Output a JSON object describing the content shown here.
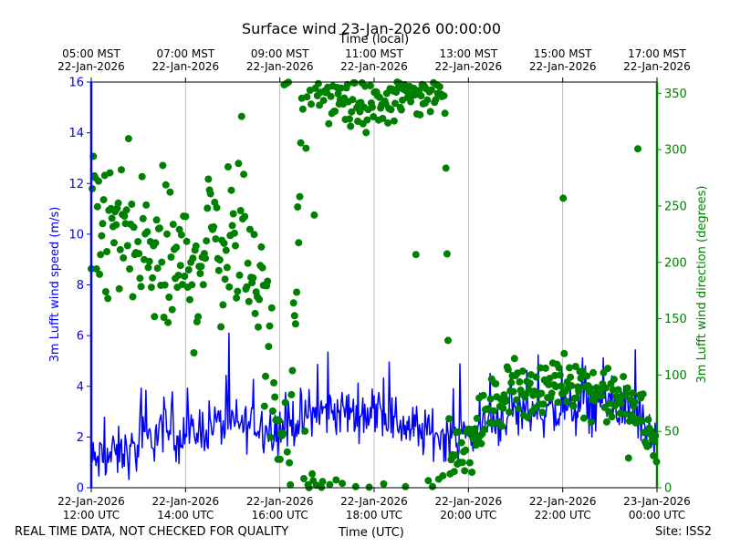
{
  "chart_data": {
    "type": "line+scatter",
    "title": "Surface wind 23-Jan-2026 00:00:00",
    "top_axis_label": "Time (local)",
    "top_ticks": [
      {
        "hour": 12,
        "time": "05:00 MST",
        "date": "22-Jan-2026"
      },
      {
        "hour": 14,
        "time": "07:00 MST",
        "date": "22-Jan-2026"
      },
      {
        "hour": 16,
        "time": "09:00 MST",
        "date": "22-Jan-2026"
      },
      {
        "hour": 18,
        "time": "11:00 MST",
        "date": "22-Jan-2026"
      },
      {
        "hour": 20,
        "time": "13:00 MST",
        "date": "22-Jan-2026"
      },
      {
        "hour": 22,
        "time": "15:00 MST",
        "date": "22-Jan-2026"
      },
      {
        "hour": 24,
        "time": "17:00 MST",
        "date": "22-Jan-2026"
      }
    ],
    "bottom_axis_label": "Time (UTC)",
    "bottom_ticks": [
      {
        "hour": 12,
        "date": "22-Jan-2026",
        "time": "12:00 UTC"
      },
      {
        "hour": 14,
        "date": "22-Jan-2026",
        "time": "14:00 UTC"
      },
      {
        "hour": 16,
        "date": "22-Jan-2026",
        "time": "16:00 UTC"
      },
      {
        "hour": 18,
        "date": "22-Jan-2026",
        "time": "18:00 UTC"
      },
      {
        "hour": 20,
        "date": "22-Jan-2026",
        "time": "20:00 UTC"
      },
      {
        "hour": 22,
        "date": "22-Jan-2026",
        "time": "22:00 UTC"
      },
      {
        "hour": 24,
        "date": "23-Jan-2026",
        "time": "00:00 UTC"
      }
    ],
    "xlim": [
      12,
      24
    ],
    "left_axis": {
      "label": "3m Lufft wind speed (m/s)",
      "ylim": [
        0,
        16
      ],
      "ticks": [
        0,
        2,
        4,
        6,
        8,
        10,
        12,
        14,
        16
      ],
      "color": "#0000ff"
    },
    "right_axis": {
      "label": "3m Lufft wind direction (degrees)",
      "ylim": [
        0,
        360
      ],
      "ticks": [
        0,
        50,
        100,
        150,
        200,
        250,
        300,
        350
      ],
      "color": "#008000"
    },
    "grid": "vertical",
    "series": [
      {
        "name": "3m Lufft wind speed",
        "axis": "left",
        "style": "line",
        "color": "#0000ff",
        "anchors": [
          [
            12.0,
            1.0
          ],
          [
            12.5,
            1.3
          ],
          [
            13.0,
            1.5
          ],
          [
            13.5,
            2.3
          ],
          [
            14.0,
            2.0
          ],
          [
            14.5,
            2.5
          ],
          [
            15.0,
            2.5
          ],
          [
            15.5,
            2.5
          ],
          [
            16.0,
            2.3
          ],
          [
            16.5,
            2.8
          ],
          [
            17.0,
            3.0
          ],
          [
            17.5,
            3.0
          ],
          [
            18.0,
            3.0
          ],
          [
            18.5,
            2.6
          ],
          [
            19.0,
            2.2
          ],
          [
            19.5,
            2.1
          ],
          [
            20.0,
            2.0
          ],
          [
            20.5,
            2.6
          ],
          [
            21.0,
            3.0
          ],
          [
            21.5,
            3.0
          ],
          [
            22.0,
            3.0
          ],
          [
            22.5,
            3.2
          ],
          [
            23.0,
            3.3
          ],
          [
            23.5,
            3.0
          ],
          [
            23.8,
            2.3
          ],
          [
            24.0,
            1.5
          ]
        ]
      },
      {
        "name": "3m Lufft wind direction",
        "axis": "right",
        "style": "markers",
        "color": "#008000",
        "anchors": [
          [
            12.0,
            220
          ],
          [
            12.5,
            230
          ],
          [
            13.0,
            210
          ],
          [
            13.5,
            200
          ],
          [
            14.0,
            190
          ],
          [
            14.5,
            220
          ],
          [
            15.0,
            220
          ],
          [
            15.5,
            200
          ],
          [
            15.8,
            100
          ],
          [
            16.0,
            60
          ],
          [
            16.2,
            10
          ],
          [
            16.5,
            355
          ],
          [
            17.0,
            350
          ],
          [
            17.5,
            340
          ],
          [
            18.0,
            340
          ],
          [
            18.5,
            345
          ],
          [
            19.0,
            350
          ],
          [
            19.5,
            355
          ],
          [
            19.6,
            30
          ],
          [
            20.0,
            40
          ],
          [
            20.5,
            70
          ],
          [
            21.0,
            95
          ],
          [
            21.5,
            80
          ],
          [
            22.0,
            100
          ],
          [
            22.5,
            90
          ],
          [
            23.0,
            80
          ],
          [
            23.5,
            75
          ],
          [
            23.8,
            50
          ],
          [
            24.0,
            30
          ]
        ]
      }
    ]
  },
  "footer": {
    "disclaimer": "REAL TIME DATA, NOT CHECKED FOR QUALITY",
    "site": "Site: ISS2"
  }
}
